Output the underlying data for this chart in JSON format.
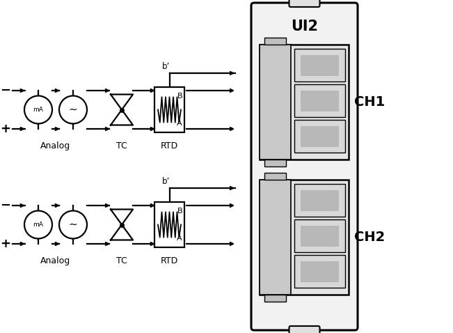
{
  "bg_color": "#ffffff",
  "line_color": "#000000",
  "fig_width": 6.51,
  "fig_height": 4.78,
  "dpi": 100,
  "ch1_label": "CH1",
  "ch2_label": "CH2",
  "ui2_label": "UI2",
  "analog_label": "Analog",
  "tc_label": "TC",
  "rtd_label": "RTD",
  "bp_label": "b’",
  "b_label": "B",
  "a_label": "A",
  "minus_label": "−",
  "plus_label": "+",
  "mA_label": "mA",
  "tilde_label": "~"
}
